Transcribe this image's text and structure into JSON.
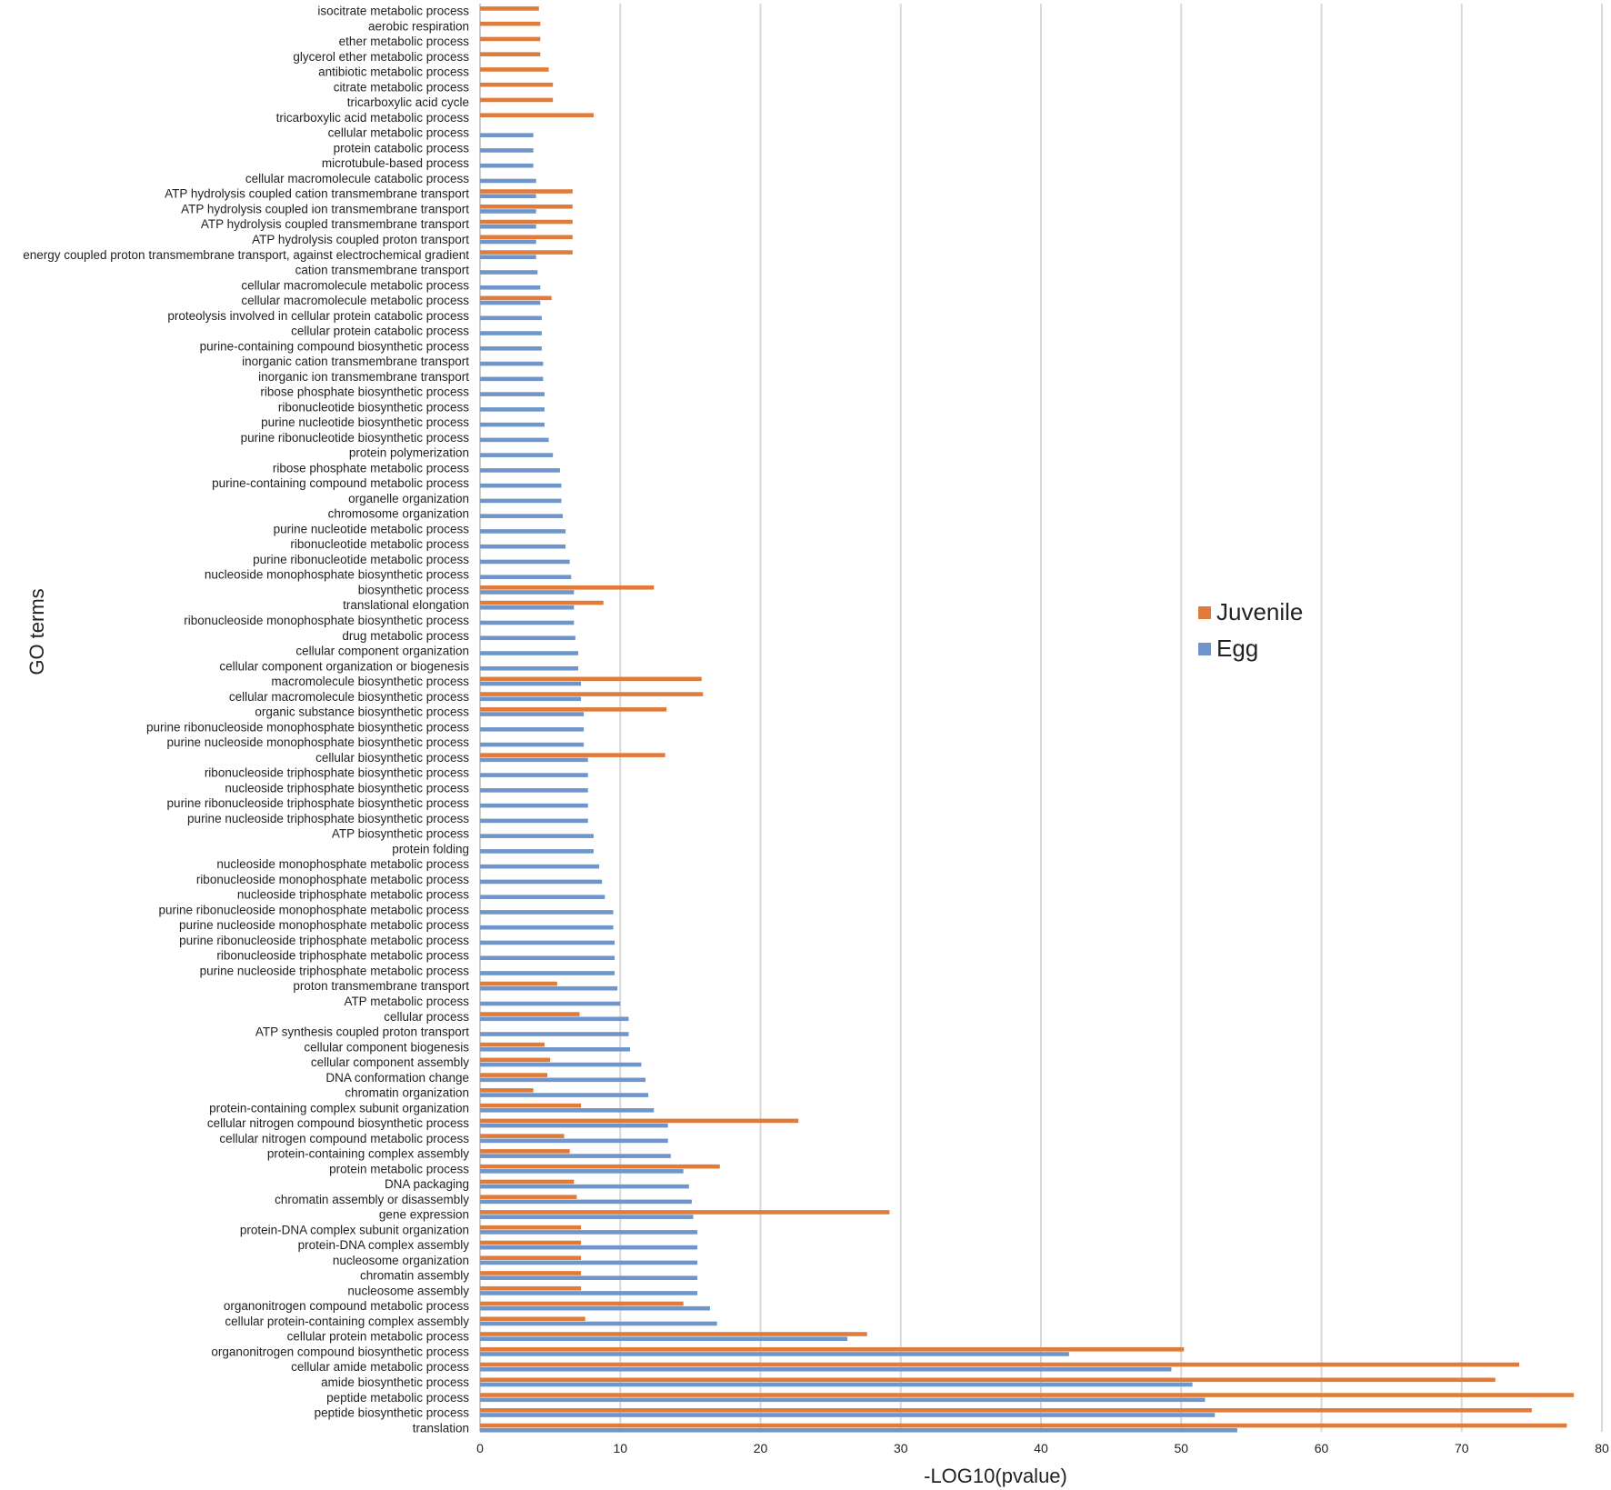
{
  "chart_data": {
    "type": "bar",
    "orientation": "horizontal",
    "title": "",
    "xlabel": "-LOG10(pvalue)",
    "ylabel": "GO terms",
    "xlim": [
      0,
      80
    ],
    "xticks": [
      0,
      10,
      20,
      30,
      40,
      50,
      60,
      70,
      80
    ],
    "grid": true,
    "legend_position": "right-middle",
    "series_colors": {
      "Juvenile": "#e07b39",
      "Egg": "#6f96cb"
    },
    "legend": [
      {
        "name": "Juvenile",
        "color": "#e07b39"
      },
      {
        "name": "Egg",
        "color": "#6f96cb"
      }
    ],
    "categories": [
      "isocitrate metabolic process",
      "aerobic respiration",
      "ether metabolic process",
      "glycerol ether metabolic process",
      "antibiotic metabolic process",
      "citrate metabolic process",
      "tricarboxylic acid cycle",
      "tricarboxylic acid metabolic process",
      "cellular metabolic process",
      "protein catabolic process",
      "microtubule-based process",
      "cellular macromolecule catabolic process",
      "ATP hydrolysis coupled cation transmembrane transport",
      "ATP hydrolysis coupled ion transmembrane transport",
      "ATP hydrolysis coupled transmembrane transport",
      "ATP hydrolysis coupled proton transport",
      "energy coupled proton transmembrane transport, against electrochemical gradient",
      "cation transmembrane transport",
      "cellular macromolecule metabolic process",
      "cellular macromolecule metabolic process",
      "proteolysis involved in cellular protein catabolic process",
      "cellular protein catabolic process",
      "purine-containing compound biosynthetic process",
      "inorganic cation transmembrane transport",
      "inorganic ion transmembrane transport",
      "ribose phosphate biosynthetic process",
      "ribonucleotide biosynthetic process",
      "purine nucleotide biosynthetic process",
      "purine ribonucleotide biosynthetic process",
      "protein polymerization",
      "ribose phosphate metabolic process",
      "purine-containing compound metabolic process",
      "organelle organization",
      "chromosome organization",
      "purine nucleotide metabolic process",
      "ribonucleotide metabolic process",
      "purine ribonucleotide metabolic process",
      "nucleoside monophosphate biosynthetic process",
      "biosynthetic process",
      "translational elongation",
      "ribonucleoside monophosphate biosynthetic process",
      "drug metabolic process",
      "cellular component organization",
      "cellular component organization or biogenesis",
      "macromolecule biosynthetic process",
      "cellular macromolecule biosynthetic process",
      "organic substance biosynthetic process",
      "purine ribonucleoside monophosphate biosynthetic process",
      "purine nucleoside monophosphate biosynthetic process",
      "cellular biosynthetic process",
      "ribonucleoside triphosphate biosynthetic process",
      "nucleoside triphosphate biosynthetic process",
      "purine ribonucleoside triphosphate biosynthetic process",
      "purine nucleoside triphosphate biosynthetic process",
      "ATP biosynthetic process",
      "protein folding",
      "nucleoside monophosphate metabolic process",
      "ribonucleoside monophosphate metabolic process",
      "nucleoside triphosphate metabolic process",
      "purine ribonucleoside monophosphate metabolic process",
      "purine nucleoside monophosphate metabolic process",
      "purine ribonucleoside triphosphate metabolic process",
      "ribonucleoside triphosphate metabolic process",
      "purine nucleoside triphosphate metabolic process",
      "proton transmembrane transport",
      "ATP metabolic process",
      "cellular process",
      "ATP synthesis coupled proton transport",
      "cellular component biogenesis",
      "cellular component assembly",
      "DNA conformation change",
      "chromatin organization",
      "protein-containing complex subunit organization",
      "cellular nitrogen compound biosynthetic process",
      "cellular nitrogen compound metabolic process",
      "protein-containing complex assembly",
      "protein metabolic process",
      "DNA packaging",
      "chromatin assembly or disassembly",
      "gene expression",
      "protein-DNA complex subunit organization",
      "protein-DNA complex assembly",
      "nucleosome organization",
      "chromatin assembly",
      "nucleosome assembly",
      "organonitrogen compound metabolic process",
      "cellular protein-containing complex assembly",
      "cellular protein metabolic process",
      "organonitrogen compound biosynthetic process",
      "cellular amide metabolic process",
      "amide biosynthetic process",
      "peptide metabolic process",
      "peptide biosynthetic process",
      "translation"
    ],
    "series": [
      {
        "name": "Juvenile",
        "values": [
          4.2,
          4.3,
          4.3,
          4.3,
          4.9,
          5.2,
          5.2,
          8.1,
          null,
          null,
          null,
          null,
          6.6,
          6.6,
          6.6,
          6.6,
          6.6,
          null,
          null,
          5.1,
          null,
          null,
          null,
          null,
          null,
          null,
          null,
          null,
          null,
          null,
          null,
          null,
          null,
          null,
          null,
          null,
          null,
          null,
          12.4,
          8.8,
          null,
          null,
          null,
          null,
          15.8,
          15.9,
          13.3,
          null,
          null,
          13.2,
          null,
          null,
          null,
          null,
          null,
          null,
          null,
          null,
          null,
          null,
          null,
          null,
          null,
          null,
          5.5,
          null,
          7.1,
          null,
          4.6,
          5.0,
          4.8,
          3.8,
          7.2,
          22.7,
          6.0,
          6.4,
          17.1,
          6.7,
          6.9,
          29.2,
          7.2,
          7.2,
          7.2,
          7.2,
          7.2,
          14.5,
          7.5,
          27.6,
          50.2,
          74.1,
          72.4,
          78.0,
          75.0,
          77.5
        ]
      },
      {
        "name": "Egg",
        "values": [
          null,
          null,
          null,
          null,
          null,
          null,
          null,
          null,
          3.8,
          3.8,
          3.8,
          4.0,
          4.0,
          4.0,
          4.0,
          4.0,
          4.0,
          4.1,
          4.3,
          4.3,
          4.4,
          4.4,
          4.4,
          4.5,
          4.5,
          4.6,
          4.6,
          4.6,
          4.9,
          5.2,
          5.7,
          5.8,
          5.8,
          5.9,
          6.1,
          6.1,
          6.4,
          6.5,
          6.7,
          6.7,
          6.7,
          6.8,
          7.0,
          7.0,
          7.2,
          7.2,
          7.4,
          7.4,
          7.4,
          7.7,
          7.7,
          7.7,
          7.7,
          7.7,
          8.1,
          8.1,
          8.5,
          8.7,
          8.9,
          9.5,
          9.5,
          9.6,
          9.6,
          9.6,
          9.8,
          10.0,
          10.6,
          10.6,
          10.7,
          11.5,
          11.8,
          12.0,
          12.4,
          13.4,
          13.4,
          13.6,
          14.5,
          14.9,
          15.1,
          15.2,
          15.5,
          15.5,
          15.5,
          15.5,
          15.5,
          16.4,
          16.9,
          26.2,
          42.0,
          49.3,
          50.8,
          51.7,
          52.4,
          54.0
        ]
      }
    ]
  }
}
